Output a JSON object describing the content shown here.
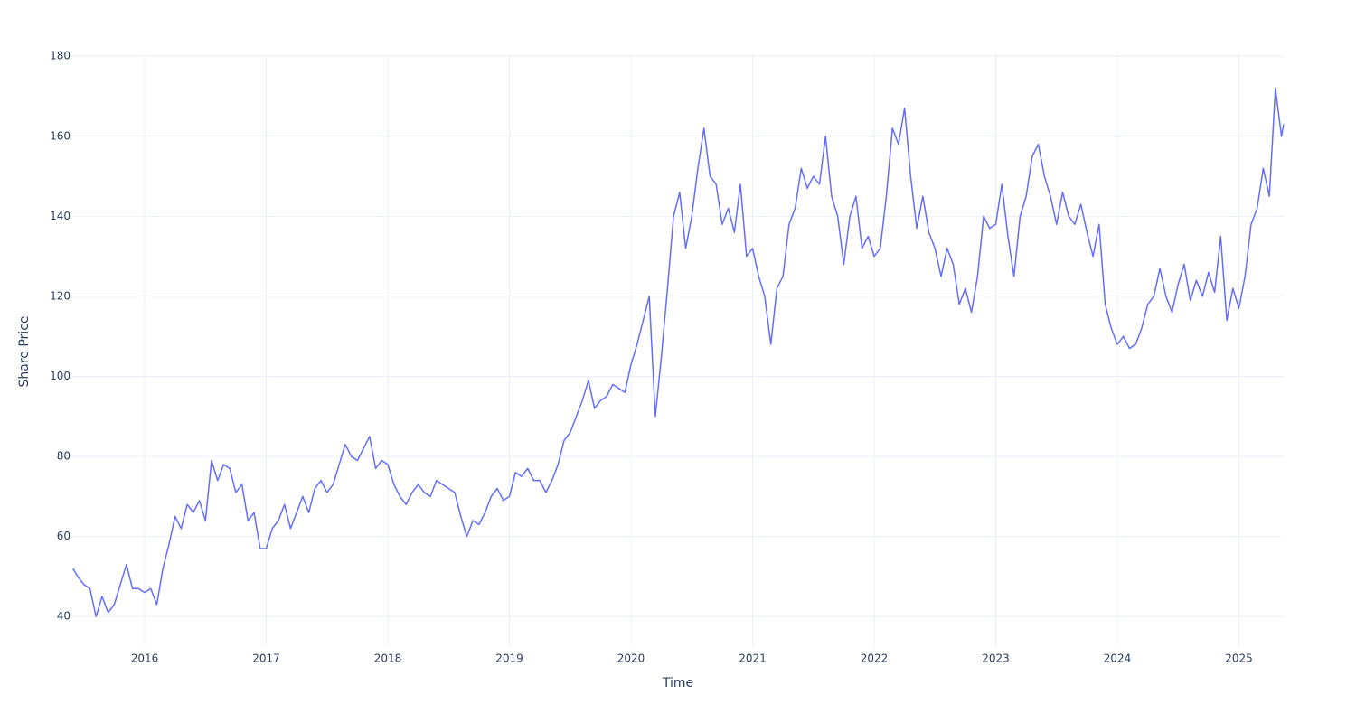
{
  "chart_data": {
    "type": "line",
    "x_label": "Time",
    "y_label": "Share Price",
    "xlim": [
      2015.405,
      2025.368
    ],
    "ylim": [
      32.6,
      180.5
    ],
    "xticks": [
      2016,
      2017,
      2018,
      2019,
      2020,
      2021,
      2022,
      2023,
      2024,
      2025
    ],
    "yticks": [
      40,
      60,
      80,
      100,
      120,
      140,
      160,
      180
    ],
    "grid": true,
    "color": "#636efa",
    "x": [
      2015.41,
      2015.45,
      2015.5,
      2015.55,
      2015.6,
      2015.65,
      2015.7,
      2015.75,
      2015.8,
      2015.85,
      2015.9,
      2015.95,
      2016.0,
      2016.05,
      2016.1,
      2016.15,
      2016.2,
      2016.25,
      2016.3,
      2016.35,
      2016.4,
      2016.45,
      2016.5,
      2016.55,
      2016.6,
      2016.65,
      2016.7,
      2016.75,
      2016.8,
      2016.85,
      2016.9,
      2016.95,
      2017.0,
      2017.05,
      2017.1,
      2017.15,
      2017.2,
      2017.25,
      2017.3,
      2017.35,
      2017.4,
      2017.45,
      2017.5,
      2017.55,
      2017.6,
      2017.65,
      2017.7,
      2017.75,
      2017.8,
      2017.85,
      2017.9,
      2017.95,
      2018.0,
      2018.05,
      2018.1,
      2018.15,
      2018.2,
      2018.25,
      2018.3,
      2018.35,
      2018.4,
      2018.45,
      2018.55,
      2018.6,
      2018.65,
      2018.7,
      2018.75,
      2018.8,
      2018.85,
      2018.9,
      2018.95,
      2019.0,
      2019.05,
      2019.1,
      2019.15,
      2019.2,
      2019.25,
      2019.3,
      2019.35,
      2019.4,
      2019.45,
      2019.5,
      2019.55,
      2019.6,
      2019.65,
      2019.7,
      2019.75,
      2019.8,
      2019.85,
      2019.9,
      2019.95,
      2020.0,
      2020.05,
      2020.1,
      2020.15,
      2020.2,
      2020.25,
      2020.3,
      2020.35,
      2020.4,
      2020.45,
      2020.5,
      2020.55,
      2020.6,
      2020.65,
      2020.7,
      2020.75,
      2020.8,
      2020.85,
      2020.9,
      2020.95,
      2021.0,
      2021.05,
      2021.1,
      2021.15,
      2021.2,
      2021.25,
      2021.3,
      2021.35,
      2021.4,
      2021.45,
      2021.5,
      2021.55,
      2021.6,
      2021.65,
      2021.7,
      2021.75,
      2021.8,
      2021.85,
      2021.9,
      2021.95,
      2022.0,
      2022.05,
      2022.1,
      2022.15,
      2022.2,
      2022.25,
      2022.3,
      2022.35,
      2022.4,
      2022.45,
      2022.5,
      2022.55,
      2022.6,
      2022.65,
      2022.7,
      2022.75,
      2022.8,
      2022.85,
      2022.9,
      2022.95,
      2023.0,
      2023.05,
      2023.1,
      2023.15,
      2023.2,
      2023.25,
      2023.3,
      2023.35,
      2023.4,
      2023.45,
      2023.5,
      2023.55,
      2023.6,
      2023.65,
      2023.7,
      2023.75,
      2023.8,
      2023.85,
      2023.9,
      2023.95,
      2024.0,
      2024.05,
      2024.1,
      2024.15,
      2024.2,
      2024.25,
      2024.3,
      2024.35,
      2024.4,
      2024.45,
      2024.5,
      2024.55,
      2024.6,
      2024.65,
      2024.7,
      2024.75,
      2024.8,
      2024.85,
      2024.9,
      2024.95,
      2025.0,
      2025.05,
      2025.1,
      2025.15,
      2025.2,
      2025.25,
      2025.3,
      2025.35,
      2025.368
    ],
    "values": [
      52,
      50,
      48,
      47,
      40,
      45,
      41,
      43,
      48,
      53,
      47,
      47,
      46,
      47,
      43,
      52,
      58,
      65,
      62,
      68,
      66,
      69,
      64,
      79,
      74,
      78,
      77,
      71,
      73,
      64,
      66,
      57,
      57,
      62,
      64,
      68,
      62,
      66,
      70,
      66,
      72,
      74,
      71,
      73,
      78,
      83,
      80,
      79,
      82,
      85,
      77,
      79,
      78,
      73,
      70,
      68,
      71,
      73,
      71,
      70,
      74,
      73,
      71,
      65,
      60,
      64,
      63,
      66,
      70,
      72,
      69,
      70,
      76,
      75,
      77,
      74,
      74,
      71,
      74,
      78,
      84,
      86,
      90,
      94,
      99,
      92,
      94,
      95,
      98,
      97,
      96,
      103,
      108,
      114,
      120,
      90,
      105,
      122,
      140,
      146,
      132,
      140,
      152,
      162,
      150,
      148,
      138,
      142,
      136,
      148,
      130,
      132,
      125,
      120,
      108,
      122,
      125,
      138,
      142,
      152,
      147,
      150,
      148,
      160,
      145,
      140,
      128,
      140,
      145,
      132,
      135,
      130,
      132,
      145,
      162,
      158,
      167,
      150,
      137,
      145,
      136,
      132,
      125,
      132,
      128,
      118,
      122,
      116,
      125,
      140,
      137,
      138,
      148,
      135,
      125,
      140,
      145,
      155,
      158,
      150,
      145,
      138,
      146,
      140,
      138,
      143,
      136,
      130,
      138,
      118,
      112,
      108,
      110,
      107,
      108,
      112,
      118,
      120,
      127,
      120,
      116,
      123,
      128,
      119,
      124,
      120,
      126,
      121,
      135,
      114,
      122,
      117,
      125,
      138,
      142,
      152,
      145,
      172,
      160,
      163
    ]
  }
}
